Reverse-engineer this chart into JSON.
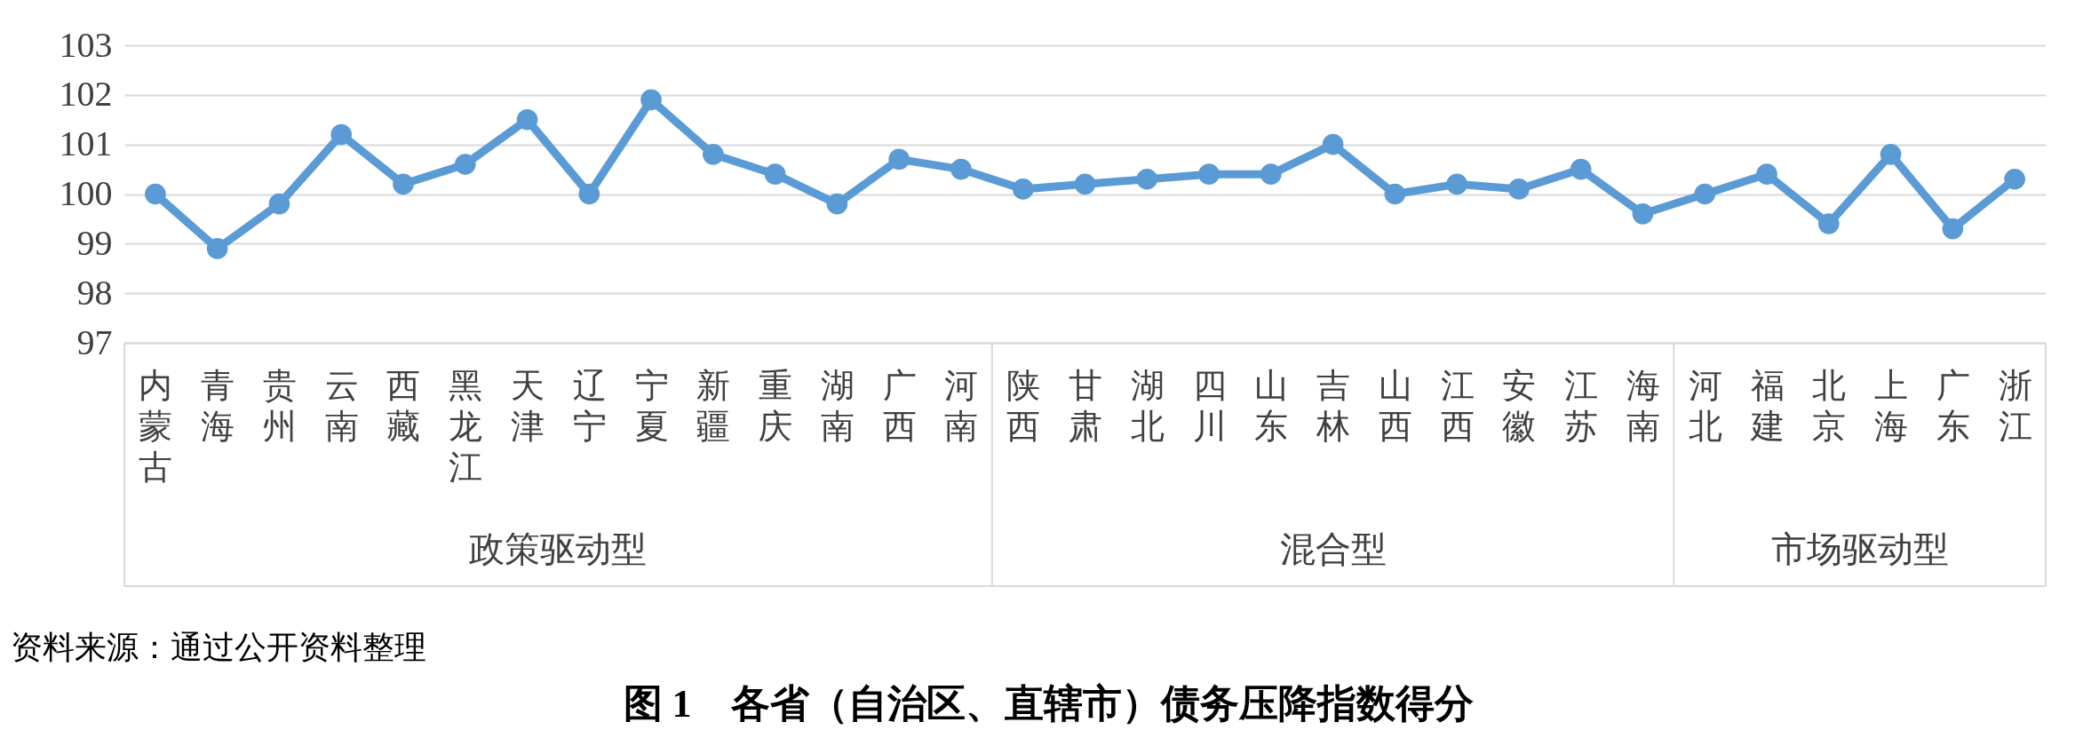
{
  "chart_data": {
    "type": "line",
    "title": "图 1　各省（自治区、直辖市）债务压降指数得分",
    "categories": [
      "内蒙古",
      "青海",
      "贵州",
      "云南",
      "西藏",
      "黑龙江",
      "天津",
      "辽宁",
      "宁夏",
      "新疆",
      "重庆",
      "湖南",
      "广西",
      "河南",
      "陕西",
      "甘肃",
      "湖北",
      "四川",
      "山东",
      "吉林",
      "山西",
      "江西",
      "安徽",
      "江苏",
      "海南",
      "河北",
      "福建",
      "北京",
      "上海",
      "广东",
      "浙江"
    ],
    "series": [
      {
        "color": "#5b9bd5",
        "values": [
          100.0,
          98.9,
          99.8,
          101.2,
          100.2,
          100.6,
          101.5,
          100.0,
          101.9,
          100.8,
          100.4,
          99.8,
          100.7,
          100.5,
          100.1,
          100.2,
          100.3,
          100.4,
          100.4,
          101.0,
          100.0,
          100.2,
          100.1,
          100.5,
          99.6,
          100.0,
          100.4,
          99.4,
          100.8,
          99.3,
          100.3
        ]
      }
    ],
    "ylim": [
      97,
      103
    ],
    "yticks": [
      97,
      98,
      99,
      100,
      101,
      102,
      103
    ],
    "grid": "y",
    "marker": "circle",
    "line_style": "solid",
    "legend": false,
    "annotations": [
      "政策驱动型",
      "混合型",
      "市场驱动型",
      "资料来源：通过公开资料整理"
    ]
  }
}
